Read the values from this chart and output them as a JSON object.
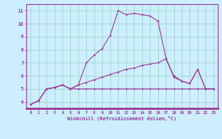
{
  "xlabel": "Windchill (Refroidissement éolien,°C)",
  "background_color": "#cceeff",
  "grid_color": "#99ccbb",
  "line_color": "#993399",
  "x": [
    0,
    1,
    2,
    3,
    4,
    5,
    6,
    7,
    8,
    9,
    10,
    11,
    12,
    13,
    14,
    15,
    16,
    17,
    18,
    19,
    20,
    21,
    22,
    23
  ],
  "line1": [
    3.8,
    4.1,
    5.0,
    5.1,
    5.3,
    5.0,
    5.3,
    7.0,
    7.6,
    8.1,
    9.1,
    11.0,
    10.7,
    10.8,
    10.7,
    10.6,
    10.2,
    7.4,
    5.9,
    5.6,
    5.4,
    6.5,
    5.0,
    5.0
  ],
  "line2": [
    3.8,
    4.1,
    5.0,
    5.1,
    5.3,
    5.0,
    5.0,
    5.0,
    5.0,
    5.0,
    5.0,
    5.0,
    5.0,
    5.0,
    5.0,
    5.0,
    5.0,
    5.0,
    5.0,
    5.0,
    5.0,
    5.0,
    5.0,
    5.0
  ],
  "line3": [
    3.8,
    4.1,
    5.0,
    5.1,
    5.3,
    5.0,
    5.3,
    5.5,
    5.7,
    5.9,
    6.1,
    6.3,
    6.5,
    6.6,
    6.8,
    6.9,
    7.0,
    7.3,
    6.0,
    5.6,
    5.4,
    6.5,
    5.0,
    5.0
  ],
  "ylim": [
    3.5,
    11.5
  ],
  "yticks": [
    4,
    5,
    6,
    7,
    8,
    9,
    10,
    11
  ],
  "xlim": [
    -0.5,
    23.5
  ],
  "xticks": [
    0,
    1,
    2,
    3,
    4,
    5,
    6,
    7,
    8,
    9,
    10,
    11,
    12,
    13,
    14,
    15,
    16,
    17,
    18,
    19,
    20,
    21,
    22,
    23
  ]
}
